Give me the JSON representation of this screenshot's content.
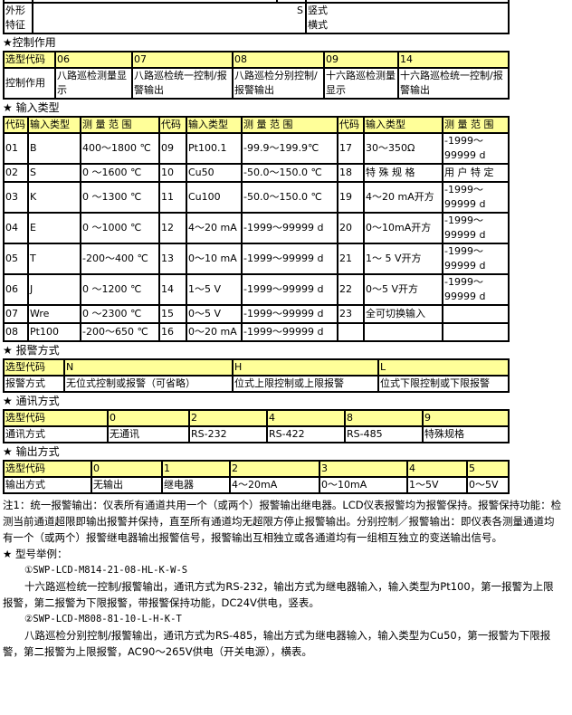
{
  "shape": {
    "label": "外形特征",
    "code": "S",
    "options": [
      "竖式",
      "横式"
    ]
  },
  "control": {
    "title": "★控制作用",
    "header": [
      "选型代码",
      "06",
      "07",
      "08",
      "09",
      "14"
    ],
    "row": [
      "控制作用",
      "八路巡检测量显示",
      "八路巡检统一控制/报警输出",
      "八路巡检分别控制/报警输出",
      "十六路巡检测量显示",
      "十六路巡检统一控制/报警输出"
    ]
  },
  "input": {
    "title": "★ 输入类型",
    "header": [
      "代码",
      "输入类型",
      "测 量 范 围",
      "代码",
      "输入类型",
      "测 量 范 围",
      "代码",
      "输入类型",
      "测 量 范 围"
    ],
    "rows": [
      [
        "01",
        "B",
        "400～1800 ℃",
        "09",
        "Pt100.1",
        "-99.9～199.9℃",
        "17",
        "30～350Ω",
        "-1999～ 99999 d"
      ],
      [
        "02",
        "S",
        "0 ～1600 ℃",
        "10",
        "Cu50",
        "-50.0～150.0 ℃",
        "18",
        "特 殊 规 格",
        "用 户 特 定"
      ],
      [
        "03",
        "K",
        "0 ～1300 ℃",
        "11",
        "Cu100",
        "-50.0～150.0 ℃",
        "19",
        "4～20 mA开方",
        "-1999～ 99999 d"
      ],
      [
        "04",
        "E",
        "0 ～1000 ℃",
        "12",
        "4～20 mA",
        "-1999～99999 d",
        "20",
        "0～10mA开方",
        "-1999～ 99999 d"
      ],
      [
        "05",
        "T",
        "-200～400 ℃",
        "13",
        "0～10 mA",
        "-1999～99999 d",
        "21",
        "1～ 5 V开方",
        "-1999～ 99999 d"
      ],
      [
        "06",
        "J",
        "0 ～1200 ℃",
        "14",
        "1～5 V",
        "-1999～99999 d",
        "22",
        "0～5 V开方",
        "-1999～ 99999 d"
      ],
      [
        "07",
        "Wre",
        "0 ～2300 ℃",
        "15",
        "0～5 V",
        "-1999～99999 d",
        "23",
        "全可切换输入",
        ""
      ],
      [
        "08",
        "Pt100",
        "-200～650 ℃",
        "16",
        "0～20 mA",
        "-1999～99999 d",
        "",
        "",
        ""
      ]
    ]
  },
  "alarm": {
    "title": "★ 报警方式",
    "header": [
      "选型代码",
      "N",
      "H",
      "L"
    ],
    "row": [
      "报警方式",
      "无位式控制或报警（可省略）",
      "位式上限控制或上限报警",
      "位式下限控制或下限报警"
    ]
  },
  "comm": {
    "title": "★ 通讯方式",
    "header": [
      "选型代码",
      "0",
      "2",
      "4",
      "8",
      "9"
    ],
    "row": [
      "通讯方式",
      "无通讯",
      "RS-232",
      "RS-422",
      "RS-485",
      "特殊规格"
    ]
  },
  "output": {
    "title": "★ 输出方式",
    "header": [
      "选型代码",
      "0",
      "1",
      "2",
      "3",
      "4",
      "5"
    ],
    "row": [
      "输出方式",
      "无输出",
      "继电器",
      "4～20mA",
      "0～10mA",
      "1～5V",
      "0～5V"
    ]
  },
  "note": "注1：统一报警输出：仪表所有通道共用一个（或两个）报警输出继电器。LCD仪表报警均为报警保持。报警保持功能：检测当前通道超限即输出报警并保持，直至所有通道均无超限方停止报警输出。分别控制／报警输出：即仪表各测量通道均有一个（或两个）报警继电器输出报警信号，报警输出互相独立或各通道均有一组相互独立的变送输出信号。",
  "examples": {
    "title": "★ 型号举例：",
    "items": [
      {
        "model": "①SWP-LCD-M814-21-08-HL-K-W-S",
        "desc": "十六路巡检统一控制/报警输出，通讯方式为RS-232，输出方式为继电器输入，输入类型为Pt100，第一报警为上限报警，第二报警为下限报警，带报警保持功能，DC24V供电，竖表。"
      },
      {
        "model": "②SWP-LCD-M808-81-10-L-H-K-T",
        "desc": "八路巡检分别控制/报警输出，通讯方式为RS-485，输出方式为继电器输入，输入类型为Cu50，第一报警为下限报警，第二报警为上限报警，AC90～265V供电（开关电源），横表。"
      }
    ]
  }
}
